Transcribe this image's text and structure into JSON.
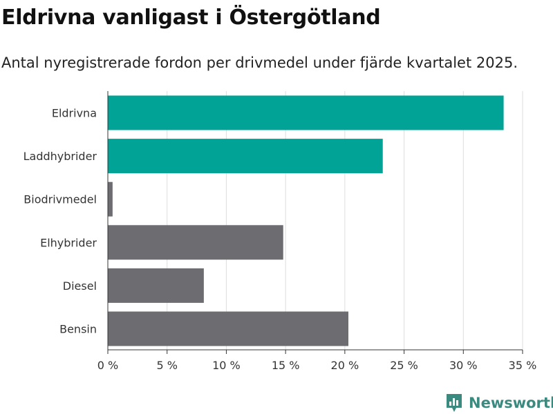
{
  "header": {
    "title": "Eldrivna vanligast i Östergötland",
    "subtitle": "Antal nyregistrerade fordon per drivmedel under fjärde kvartalet 2025."
  },
  "brand": {
    "name": "Newsworthy",
    "color": "#3b8a80",
    "icon": "newsworthy-logo-icon"
  },
  "colors": {
    "highlight": "#00a396",
    "default": "#6d6c71",
    "grid": "#dddddd",
    "axis": "#333333"
  },
  "chart_data": {
    "type": "bar",
    "orientation": "horizontal",
    "title": "Eldrivna vanligast i Östergötland",
    "subtitle": "Antal nyregistrerade fordon per drivmedel under fjärde kvartalet 2025.",
    "xlabel": "",
    "ylabel": "",
    "categories": [
      "Eldrivna",
      "Laddhybrider",
      "Biodrivmedel",
      "Elhybrider",
      "Diesel",
      "Bensin"
    ],
    "values": [
      33.4,
      23.2,
      0.4,
      14.8,
      8.1,
      20.3
    ],
    "highlight": [
      true,
      true,
      false,
      false,
      false,
      false
    ],
    "xlim": [
      0,
      35
    ],
    "xticks": [
      0,
      5,
      10,
      15,
      20,
      25,
      30,
      35
    ],
    "xtick_labels": [
      "0 %",
      "5 %",
      "10 %",
      "15 %",
      "20 %",
      "25 %",
      "30 %",
      "35 %"
    ],
    "grid": true,
    "legend": "none"
  }
}
